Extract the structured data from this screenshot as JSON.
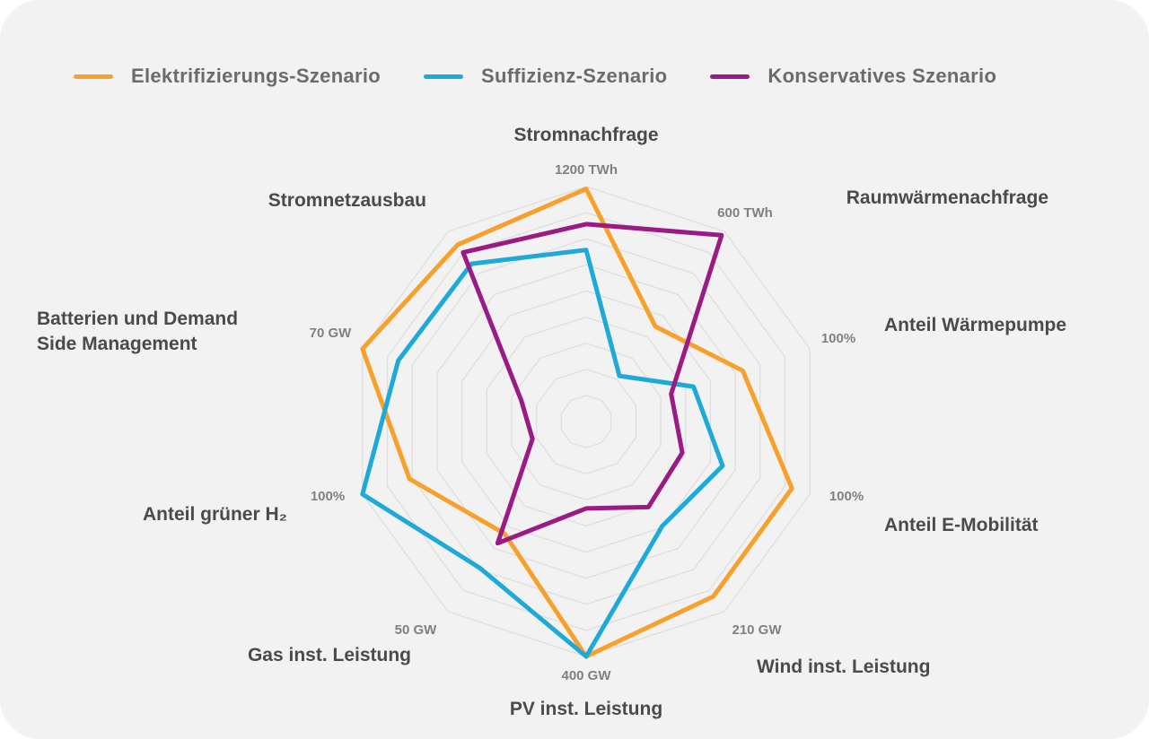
{
  "chart_data": {
    "type": "radar",
    "axes": [
      {
        "label": "Stromnachfrage",
        "max_label": "1200 TWh"
      },
      {
        "label": "Raumwärmenachfrage",
        "max_label": "600 TWh"
      },
      {
        "label": "Anteil Wärmepumpe",
        "max_label": "100%"
      },
      {
        "label": "Anteil E-Mobilität",
        "max_label": "100%"
      },
      {
        "label": "Wind inst. Leistung",
        "max_label": "210 GW"
      },
      {
        "label": "PV inst. Leistung",
        "max_label": "400 GW"
      },
      {
        "label": "Gas inst. Leistung",
        "max_label": "50 GW"
      },
      {
        "label": "Anteil grüner H₂",
        "max_label": "100%"
      },
      {
        "label": "Batterien und Demand Side Management",
        "max_label": "70 GW"
      },
      {
        "label": "Stromnetzausbau",
        "max_label": ""
      }
    ],
    "value_scale": "fraction of axis maximum (0–1)",
    "series": [
      {
        "name": "Elektrifizierungs-Szenario",
        "color": "#f7a12c",
        "values": [
          0.99,
          0.5,
          0.7,
          0.92,
          0.92,
          1.0,
          0.59,
          0.79,
          1.0,
          0.93
        ]
      },
      {
        "name": "Suffizienz-Szenario",
        "color": "#1eaad8",
        "values": [
          0.73,
          0.24,
          0.48,
          0.61,
          0.55,
          1.0,
          0.77,
          1.0,
          0.84,
          0.83
        ]
      },
      {
        "name": "Konservatives Szenario",
        "color": "#9b1a84",
        "values": [
          0.84,
          0.98,
          0.38,
          0.43,
          0.45,
          0.37,
          0.64,
          0.24,
          0.29,
          0.89
        ]
      }
    ],
    "grid_levels": 9
  }
}
